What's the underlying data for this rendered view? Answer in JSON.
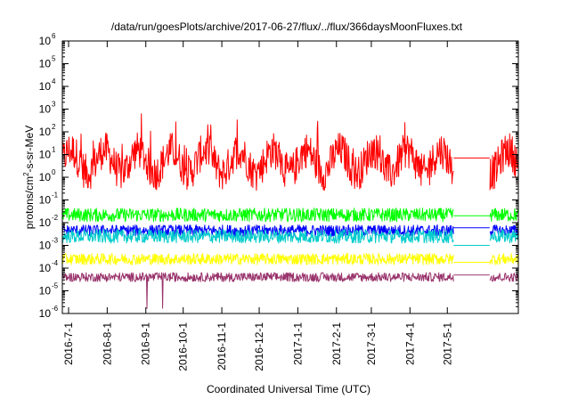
{
  "chart_data": {
    "type": "line",
    "title": "/data/run/goesPlots/archive/2017-06-27/flux/../flux/366daysMoonFluxes.txt",
    "xlabel": "Coordinated Universal Time (UTC)",
    "ylabel": {
      "base": "protons/cm",
      "sup": "2",
      "rest": "-s-sr-MeV"
    },
    "yscale": "log",
    "ylim_exp": [
      -6,
      6
    ],
    "yticks": [
      {
        "base": "10",
        "exp": "-6"
      },
      {
        "base": "10",
        "exp": "-5"
      },
      {
        "base": "10",
        "exp": "-4"
      },
      {
        "base": "10",
        "exp": "-3"
      },
      {
        "base": "10",
        "exp": "-2"
      },
      {
        "base": "10",
        "exp": "-1"
      },
      {
        "base": "10",
        "exp": "0"
      },
      {
        "base": "10",
        "exp": "1"
      },
      {
        "base": "10",
        "exp": "2"
      },
      {
        "base": "10",
        "exp": "3"
      },
      {
        "base": "10",
        "exp": "4"
      },
      {
        "base": "10",
        "exp": "5"
      },
      {
        "base": "10",
        "exp": "6"
      }
    ],
    "x_start": "2016-06-26",
    "x_end": "2017-06-27",
    "xticks": [
      "2016-7-1",
      "2016-8-1",
      "2016-9-1",
      "2016-10-1",
      "2016-11-1",
      "2016-12-1",
      "2017-1-1",
      "2017-2-1",
      "2017-3-1",
      "2017-4-1",
      "2017-5-1"
    ],
    "data_gap": [
      "2017-05-06",
      "2017-06-04"
    ],
    "grid": false,
    "legend": "none",
    "series": [
      {
        "color": "#ff0000",
        "median": 5.0,
        "spread_decades": 0.8,
        "gap_level": 7.0
      },
      {
        "color": "#00ff00",
        "median": 0.022,
        "spread_decades": 0.3,
        "gap_level": 0.02
      },
      {
        "color": "#0000ff",
        "median": 0.0045,
        "spread_decades": 0.25,
        "gap_level": 0.006
      },
      {
        "color": "#00cccc",
        "median": 0.0025,
        "spread_decades": 0.3,
        "gap_level": 0.001
      },
      {
        "color": "#ffff00",
        "median": 0.00025,
        "spread_decades": 0.25,
        "gap_level": 0.00018
      },
      {
        "color": "#99336b",
        "median": 4e-05,
        "spread_decades": 0.2,
        "gap_level": 5e-05
      }
    ]
  }
}
